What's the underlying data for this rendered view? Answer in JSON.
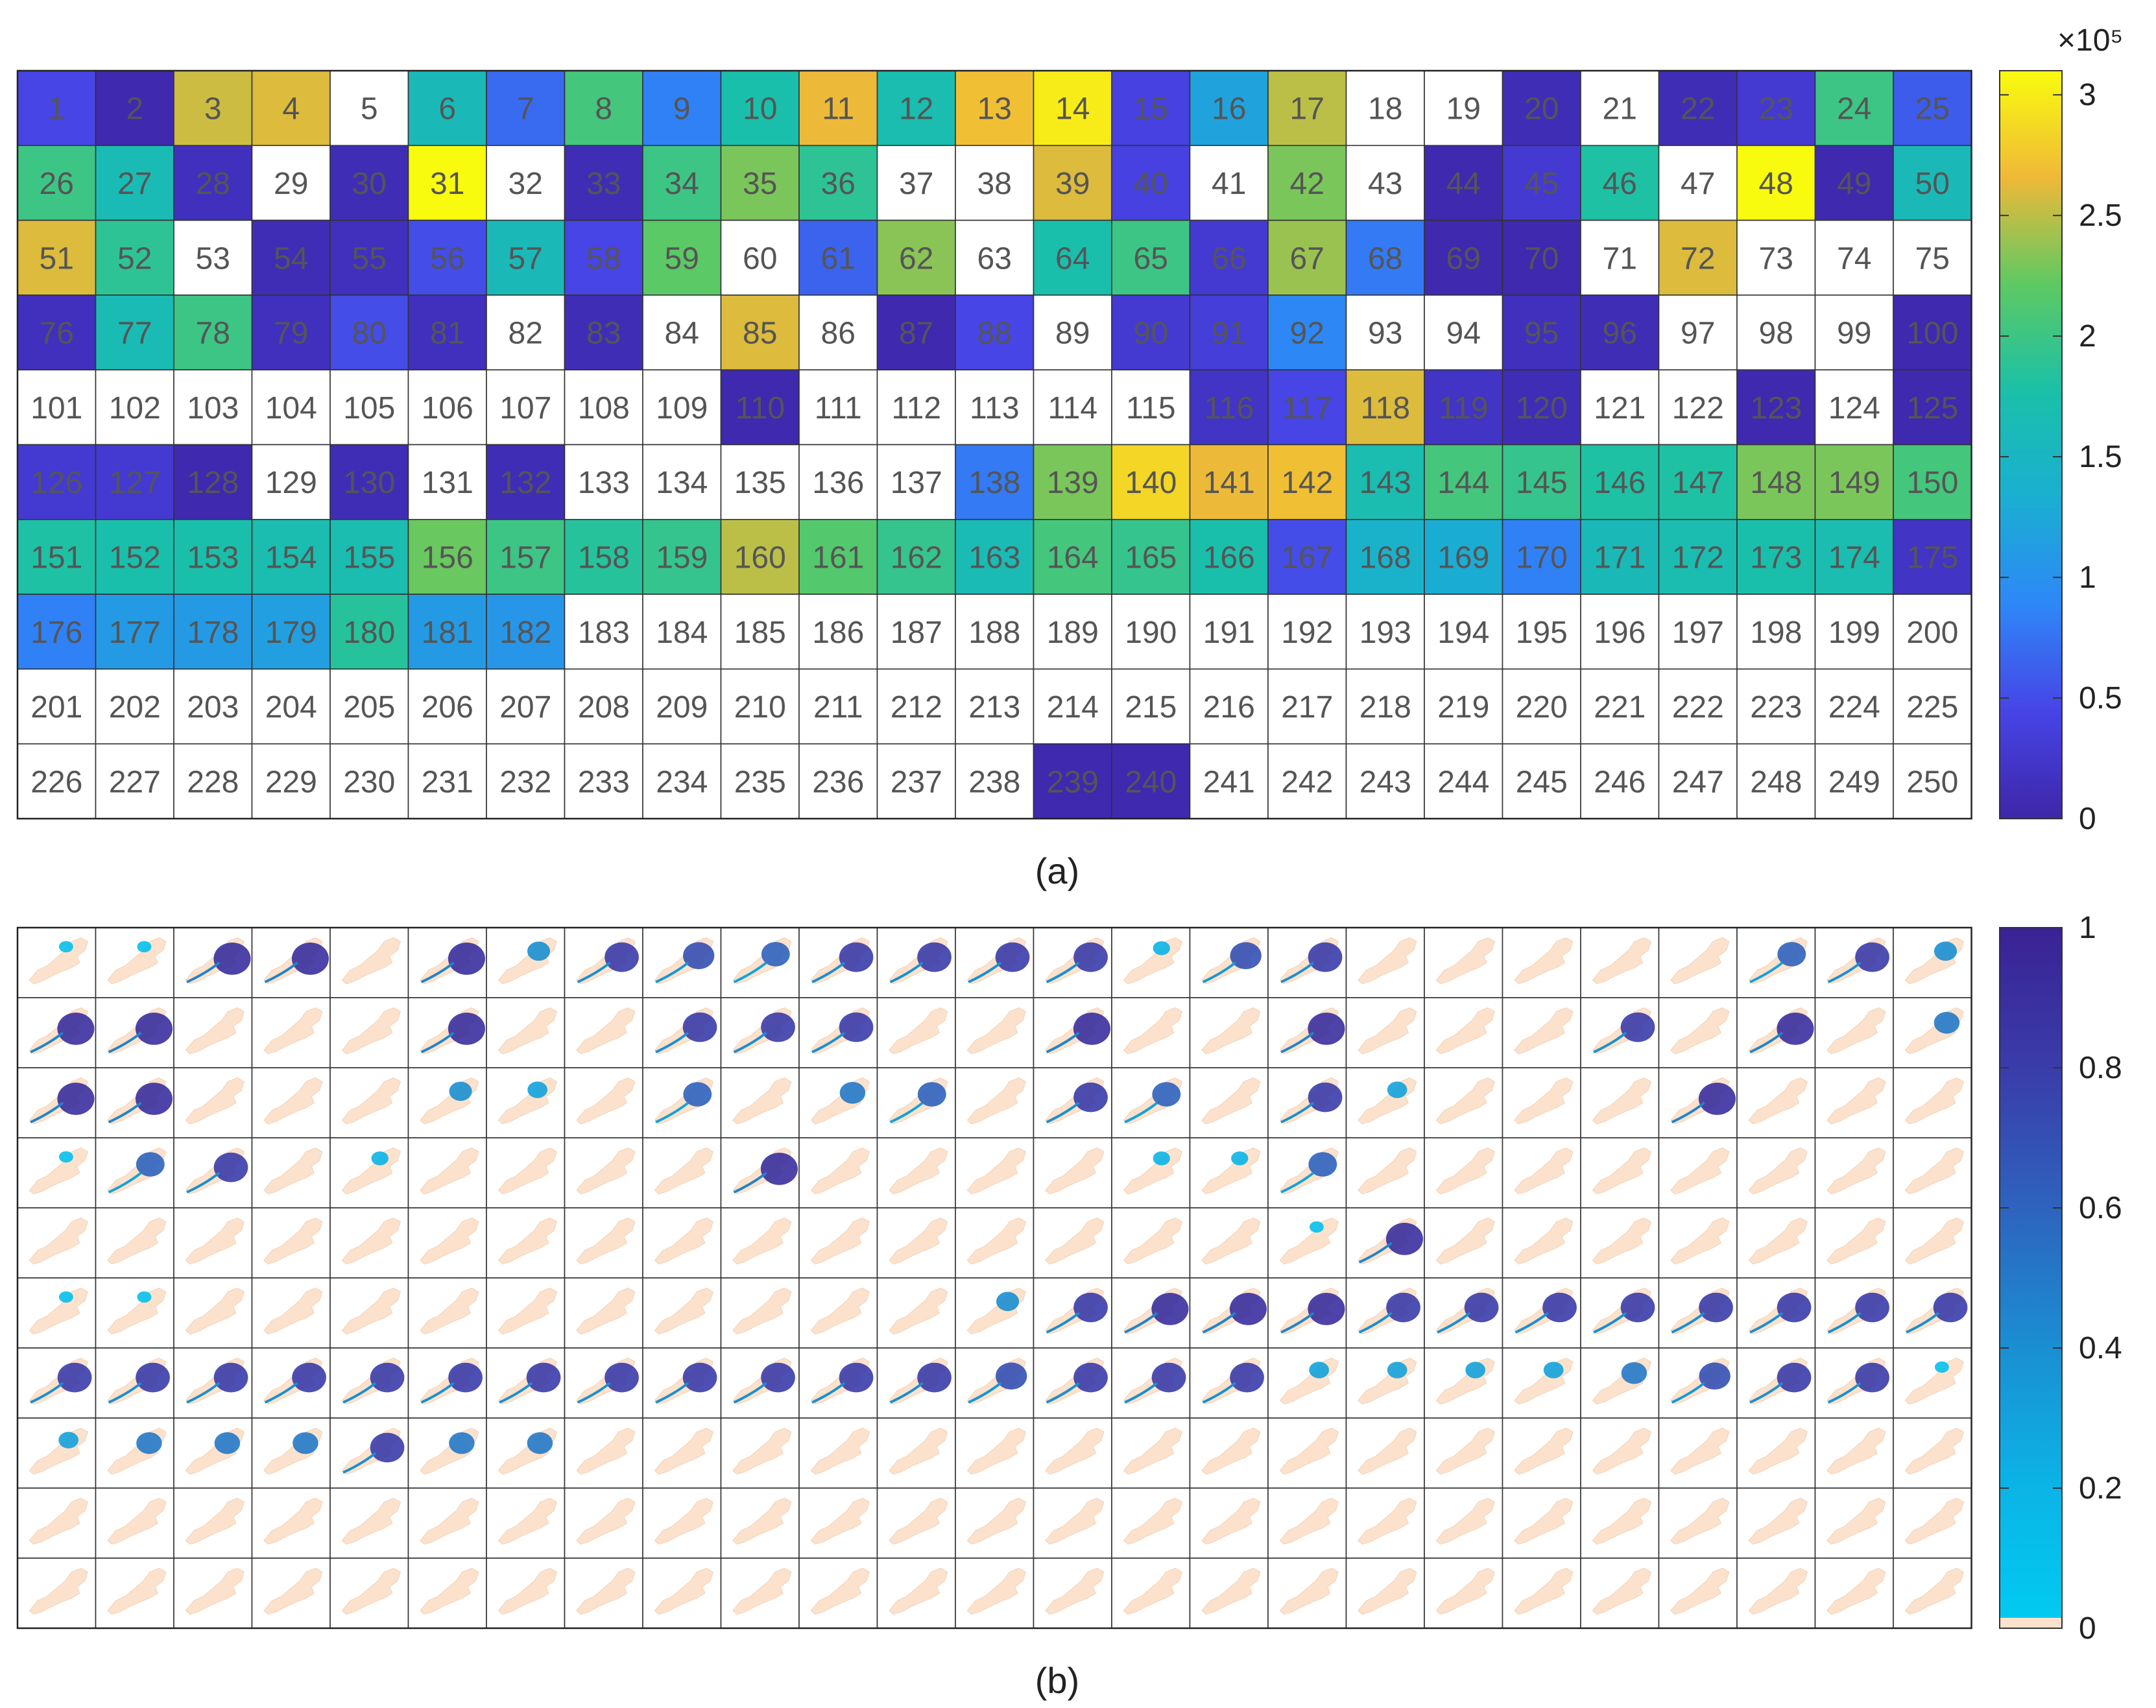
{
  "chart_data": [
    {
      "type": "heatmap",
      "panel_label": "(a)",
      "grid": {
        "rows": 10,
        "cols": 25
      },
      "colormap": "parula",
      "colorbar": {
        "range": [
          0,
          3.1
        ],
        "ticks": [
          "0",
          "0.5",
          "1",
          "1.5",
          "2",
          "2.5",
          "3"
        ],
        "exponent_label": "×10⁵"
      },
      "cell_labels": "1-250 row-major",
      "values": [
        [
          0.45,
          0.05,
          2.55,
          2.6,
          null,
          1.6,
          0.7,
          2.05,
          0.85,
          1.75,
          2.65,
          1.7,
          2.7,
          3.0,
          0.4,
          1.2,
          2.5,
          null,
          null,
          0.1,
          null,
          0.1,
          0.3,
          2.0,
          0.6
        ],
        [
          2.0,
          1.65,
          0.15,
          null,
          0.1,
          3.1,
          null,
          0.1,
          2.0,
          2.3,
          1.9,
          null,
          null,
          2.6,
          0.4,
          null,
          2.3,
          null,
          0.05,
          0.3,
          1.8,
          null,
          3.1,
          0.05,
          1.6
        ],
        [
          2.6,
          1.9,
          null,
          0.1,
          0.15,
          0.5,
          1.6,
          0.45,
          2.2,
          null,
          0.65,
          2.35,
          null,
          1.75,
          2.0,
          0.3,
          2.4,
          0.8,
          0.05,
          0.05,
          null,
          2.6,
          null,
          null,
          null
        ],
        [
          0.15,
          1.65,
          2.0,
          0.15,
          0.5,
          0.15,
          null,
          0.1,
          null,
          2.6,
          null,
          0.05,
          0.45,
          null,
          0.3,
          0.35,
          0.9,
          null,
          null,
          0.15,
          0.1,
          null,
          null,
          null,
          0.05
        ],
        [
          null,
          null,
          null,
          null,
          null,
          null,
          null,
          null,
          null,
          0.05,
          null,
          null,
          null,
          null,
          null,
          0.2,
          0.45,
          2.6,
          0.2,
          0.1,
          null,
          null,
          0.05,
          null,
          0.05
        ],
        [
          0.3,
          0.3,
          0.05,
          null,
          0.1,
          null,
          0.1,
          null,
          null,
          null,
          null,
          null,
          0.8,
          2.3,
          2.85,
          2.65,
          2.7,
          1.7,
          2.05,
          1.95,
          1.8,
          1.8,
          2.3,
          2.3,
          2.05
        ],
        [
          1.8,
          1.75,
          1.75,
          1.7,
          1.7,
          2.25,
          2.0,
          1.85,
          1.95,
          2.5,
          2.15,
          1.95,
          1.65,
          2.05,
          1.95,
          1.75,
          0.5,
          1.4,
          1.3,
          0.85,
          1.6,
          1.7,
          1.75,
          1.7,
          0.2
        ],
        [
          0.85,
          1.1,
          1.1,
          1.15,
          1.85,
          1.1,
          1.05,
          null,
          null,
          null,
          null,
          null,
          null,
          null,
          null,
          null,
          null,
          null,
          null,
          null,
          null,
          null,
          null,
          null,
          null
        ],
        [
          null,
          null,
          null,
          null,
          null,
          null,
          null,
          null,
          null,
          null,
          null,
          null,
          null,
          null,
          null,
          null,
          null,
          null,
          null,
          null,
          null,
          null,
          null,
          null,
          null
        ],
        [
          null,
          null,
          null,
          null,
          null,
          null,
          null,
          null,
          null,
          null,
          null,
          null,
          null,
          0.05,
          0.05,
          null,
          null,
          null,
          null,
          null,
          null,
          null,
          null,
          null,
          null
        ]
      ]
    },
    {
      "type": "heatmap",
      "panel_label": "(b)",
      "grid": {
        "rows": 10,
        "cols": 25
      },
      "cell_content": "small map thumbnails",
      "colorbar": {
        "range": [
          0,
          1
        ],
        "ticks": [
          "0",
          "0.2",
          "0.4",
          "0.6",
          "0.8",
          "1"
        ]
      },
      "thumbnail_intensity": [
        [
          0.1,
          0.1,
          0.9,
          0.9,
          0,
          0.9,
          0.4,
          0.8,
          0.7,
          0.6,
          0.8,
          0.8,
          0.8,
          0.8,
          0.2,
          0.7,
          0.8,
          0,
          0,
          0,
          0,
          0,
          0.6,
          0.8,
          0.4
        ],
        [
          0.9,
          0.9,
          0,
          0,
          0,
          0.9,
          0,
          0,
          0.8,
          0.8,
          0.8,
          0,
          0,
          0.9,
          0,
          0,
          0.9,
          0,
          0,
          0,
          0.8,
          0,
          0.9,
          0,
          0.5
        ],
        [
          0.9,
          0.9,
          0,
          0,
          0,
          0.4,
          0.3,
          0,
          0.6,
          0,
          0.5,
          0.6,
          0,
          0.8,
          0.6,
          0,
          0.8,
          0.3,
          0,
          0,
          0,
          0.9,
          0,
          0,
          0
        ],
        [
          0.1,
          0.6,
          0.8,
          0,
          0.2,
          0,
          0,
          0,
          0,
          0.9,
          0,
          0,
          0,
          0,
          0.2,
          0.2,
          0.6,
          0,
          0,
          0,
          0,
          0,
          0,
          0,
          0
        ],
        [
          0,
          0,
          0,
          0,
          0,
          0,
          0,
          0,
          0,
          0,
          0,
          0,
          0,
          0,
          0,
          0,
          0.1,
          0.9,
          0,
          0,
          0,
          0,
          0,
          0,
          0
        ],
        [
          0.1,
          0.1,
          0,
          0,
          0,
          0,
          0,
          0,
          0,
          0,
          0,
          0,
          0.4,
          0.8,
          0.9,
          0.9,
          0.9,
          0.8,
          0.8,
          0.8,
          0.8,
          0.8,
          0.8,
          0.8,
          0.8
        ],
        [
          0.8,
          0.8,
          0.8,
          0.8,
          0.8,
          0.8,
          0.8,
          0.8,
          0.8,
          0.8,
          0.8,
          0.8,
          0.7,
          0.8,
          0.8,
          0.8,
          0.3,
          0.3,
          0.3,
          0.3,
          0.5,
          0.7,
          0.8,
          0.8,
          0.1
        ],
        [
          0.3,
          0.5,
          0.5,
          0.5,
          0.8,
          0.5,
          0.5,
          0,
          0,
          0,
          0,
          0,
          0,
          0,
          0,
          0,
          0,
          0,
          0,
          0,
          0,
          0,
          0,
          0,
          0
        ],
        [
          0,
          0,
          0,
          0,
          0,
          0,
          0,
          0,
          0,
          0,
          0,
          0,
          0,
          0,
          0,
          0,
          0,
          0,
          0,
          0,
          0,
          0,
          0,
          0,
          0
        ],
        [
          0,
          0,
          0,
          0,
          0,
          0,
          0,
          0,
          0,
          0,
          0,
          0,
          0,
          0,
          0,
          0,
          0,
          0,
          0,
          0,
          0,
          0,
          0,
          0,
          0
        ]
      ]
    }
  ]
}
